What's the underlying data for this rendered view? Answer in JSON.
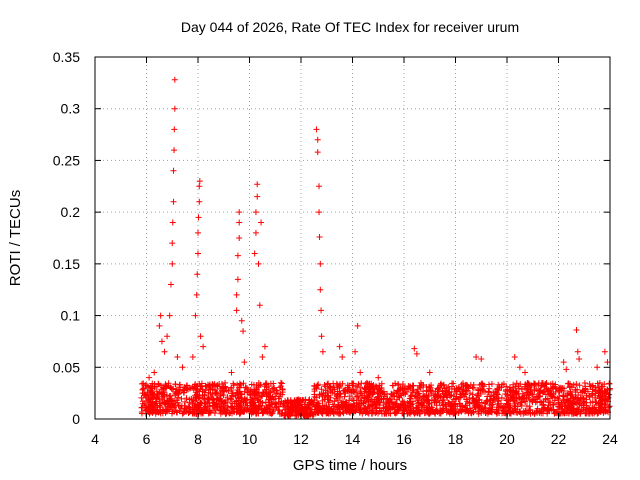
{
  "chart_data": {
    "type": "scatter",
    "title": "Day 044 of 2026, Rate Of TEC Index for receiver urum",
    "xlabel": "GPS time / hours",
    "ylabel": "ROTI / TECUs",
    "xlim": [
      4,
      24
    ],
    "ylim": [
      0,
      0.35
    ],
    "grid": true,
    "marker": "plus",
    "color": "#ff0000",
    "x_ticks": [
      4,
      6,
      8,
      10,
      12,
      14,
      16,
      18,
      20,
      22,
      24
    ],
    "x_tick_labels": [
      "4",
      "6",
      "8",
      "10",
      "12",
      "14",
      "16",
      "18",
      "20",
      "22",
      "24"
    ],
    "y_ticks": [
      0,
      0.05,
      0.1,
      0.15,
      0.2,
      0.25,
      0.3,
      0.35
    ],
    "y_tick_labels": [
      "0",
      "0.05",
      "0.1",
      "0.15",
      "0.2",
      "0.25",
      "0.3",
      "0.35"
    ],
    "series": [
      {
        "name": "ROTI",
        "background_band": {
          "x_range": [
            5.8,
            24.0
          ],
          "y_range": [
            0.005,
            0.035
          ]
        },
        "points": [
          [
            6.1,
            0.04
          ],
          [
            6.3,
            0.045
          ],
          [
            6.5,
            0.09
          ],
          [
            6.55,
            0.1
          ],
          [
            6.6,
            0.075
          ],
          [
            6.7,
            0.065
          ],
          [
            6.8,
            0.08
          ],
          [
            6.9,
            0.1
          ],
          [
            6.95,
            0.13
          ],
          [
            7.0,
            0.15
          ],
          [
            7.0,
            0.17
          ],
          [
            7.02,
            0.19
          ],
          [
            7.05,
            0.21
          ],
          [
            7.05,
            0.24
          ],
          [
            7.07,
            0.26
          ],
          [
            7.08,
            0.28
          ],
          [
            7.1,
            0.3
          ],
          [
            7.1,
            0.328
          ],
          [
            7.2,
            0.06
          ],
          [
            7.4,
            0.05
          ],
          [
            7.8,
            0.06
          ],
          [
            7.9,
            0.1
          ],
          [
            7.95,
            0.12
          ],
          [
            7.97,
            0.14
          ],
          [
            8.0,
            0.16
          ],
          [
            8.0,
            0.18
          ],
          [
            8.02,
            0.195
          ],
          [
            8.05,
            0.21
          ],
          [
            8.05,
            0.225
          ],
          [
            8.07,
            0.23
          ],
          [
            8.1,
            0.08
          ],
          [
            8.2,
            0.07
          ],
          [
            9.3,
            0.045
          ],
          [
            9.5,
            0.105
          ],
          [
            9.5,
            0.12
          ],
          [
            9.55,
            0.135
          ],
          [
            9.55,
            0.158
          ],
          [
            9.6,
            0.175
          ],
          [
            9.6,
            0.19
          ],
          [
            9.6,
            0.2
          ],
          [
            9.7,
            0.095
          ],
          [
            9.75,
            0.085
          ],
          [
            9.8,
            0.055
          ],
          [
            10.2,
            0.16
          ],
          [
            10.25,
            0.18
          ],
          [
            10.25,
            0.2
          ],
          [
            10.3,
            0.215
          ],
          [
            10.3,
            0.227
          ],
          [
            10.35,
            0.15
          ],
          [
            10.4,
            0.11
          ],
          [
            10.45,
            0.19
          ],
          [
            10.5,
            0.06
          ],
          [
            10.6,
            0.07
          ],
          [
            12.6,
            0.28
          ],
          [
            12.65,
            0.27
          ],
          [
            12.65,
            0.258
          ],
          [
            12.7,
            0.225
          ],
          [
            12.7,
            0.2
          ],
          [
            12.72,
            0.176
          ],
          [
            12.75,
            0.15
          ],
          [
            12.75,
            0.125
          ],
          [
            12.78,
            0.105
          ],
          [
            12.8,
            0.08
          ],
          [
            12.85,
            0.065
          ],
          [
            13.5,
            0.07
          ],
          [
            13.6,
            0.06
          ],
          [
            14.1,
            0.065
          ],
          [
            14.2,
            0.09
          ],
          [
            14.3,
            0.045
          ],
          [
            15.0,
            0.04
          ],
          [
            16.4,
            0.068
          ],
          [
            16.5,
            0.063
          ],
          [
            17.0,
            0.045
          ],
          [
            18.8,
            0.06
          ],
          [
            19.0,
            0.058
          ],
          [
            20.3,
            0.06
          ],
          [
            20.5,
            0.05
          ],
          [
            20.7,
            0.045
          ],
          [
            22.2,
            0.055
          ],
          [
            22.3,
            0.048
          ],
          [
            22.7,
            0.086
          ],
          [
            22.75,
            0.065
          ],
          [
            22.8,
            0.058
          ],
          [
            23.5,
            0.05
          ],
          [
            23.8,
            0.065
          ],
          [
            23.9,
            0.055
          ],
          [
            12.0,
            0.004
          ],
          [
            11.8,
            0.006
          ],
          [
            12.2,
            0.005
          ]
        ]
      }
    ]
  }
}
